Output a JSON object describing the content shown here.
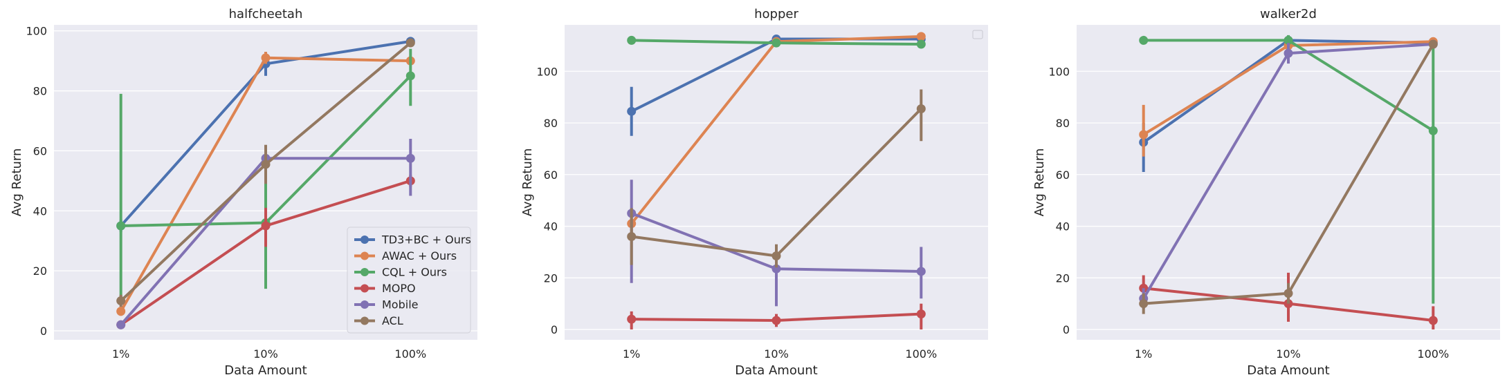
{
  "colors": {
    "panel_bg": "#eaeaf2",
    "grid": "#ffffff",
    "TD3+BC + Ours": "#4c72b0",
    "AWAC + Ours": "#dd8452",
    "CQL + Ours": "#55a868",
    "MOPO": "#c44e52",
    "Mobile": "#8172b3",
    "ACL": "#937860"
  },
  "chart_data": [
    {
      "type": "line",
      "title": "halfcheetah",
      "xlabel": "Data Amount",
      "ylabel": "Avg Return",
      "categories": [
        "1%",
        "10%",
        "100%"
      ],
      "ylim": [
        -3,
        102
      ],
      "yticks": [
        0,
        20,
        40,
        60,
        80,
        100
      ],
      "grid": true,
      "legend": "lower-right",
      "series": [
        {
          "name": "TD3+BC + Ours",
          "values": [
            35,
            89,
            96.5
          ],
          "err": [
            [
              33,
              37
            ],
            [
              85,
              93
            ],
            [
              95.5,
              97.5
            ]
          ]
        },
        {
          "name": "AWAC + Ours",
          "values": [
            6.5,
            91,
            90
          ],
          "err": [
            [
              5,
              8
            ],
            [
              89,
              93
            ],
            [
              89,
              91
            ]
          ]
        },
        {
          "name": "CQL + Ours",
          "values": [
            35,
            36,
            85
          ],
          "err": [
            [
              10,
              79
            ],
            [
              14,
              58
            ],
            [
              75,
              94
            ]
          ]
        },
        {
          "name": "MOPO",
          "values": [
            2,
            35,
            50
          ],
          "err": [
            [
              1,
              3
            ],
            [
              28,
              41
            ],
            [
              48,
              52
            ]
          ]
        },
        {
          "name": "Mobile",
          "values": [
            2,
            57.5,
            57.5
          ],
          "err": [
            [
              1,
              3
            ],
            [
              55,
              60
            ],
            [
              45,
              64
            ]
          ]
        },
        {
          "name": "ACL",
          "values": [
            10,
            55.5,
            96
          ],
          "err": [
            [
              8,
              12
            ],
            [
              49,
              62
            ],
            [
              95,
              97
            ]
          ]
        }
      ]
    },
    {
      "type": "line",
      "title": "hopper",
      "xlabel": "Data Amount",
      "ylabel": "Avg Return",
      "categories": [
        "1%",
        "10%",
        "100%"
      ],
      "ylim": [
        -4,
        118
      ],
      "yticks": [
        0,
        20,
        40,
        60,
        80,
        100
      ],
      "grid": true,
      "legend": "upper-right",
      "series": [
        {
          "name": "TD3+BC + Ours",
          "values": [
            84.5,
            112.5,
            112.5
          ],
          "err": [
            [
              75,
              94
            ],
            [
              111,
              114
            ],
            [
              111,
              114
            ]
          ]
        },
        {
          "name": "AWAC + Ours",
          "values": [
            41,
            111.5,
            113.5
          ],
          "err": [
            [
              37,
              45
            ],
            [
              110,
              113
            ],
            [
              112,
              115
            ]
          ]
        },
        {
          "name": "CQL + Ours",
          "values": [
            112,
            111,
            110.5
          ],
          "err": [
            [
              111,
              113
            ],
            [
              110,
              112
            ],
            [
              109.5,
              111.5
            ]
          ]
        },
        {
          "name": "MOPO",
          "values": [
            4,
            3.5,
            6
          ],
          "err": [
            [
              0,
              7
            ],
            [
              1,
              6
            ],
            [
              0,
              10
            ]
          ]
        },
        {
          "name": "Mobile",
          "values": [
            45,
            23.5,
            22.5
          ],
          "err": [
            [
              18,
              58
            ],
            [
              9,
              31
            ],
            [
              12,
              32
            ]
          ]
        },
        {
          "name": "ACL",
          "values": [
            36,
            28.5,
            85.5
          ],
          "err": [
            [
              25,
              47
            ],
            [
              24,
              33
            ],
            [
              73,
              93
            ]
          ]
        }
      ]
    },
    {
      "type": "line",
      "title": "walker2d",
      "xlabel": "Data Amount",
      "ylabel": "Avg Return",
      "categories": [
        "1%",
        "10%",
        "100%"
      ],
      "ylim": [
        -4,
        118
      ],
      "yticks": [
        0,
        20,
        40,
        60,
        80,
        100
      ],
      "grid": true,
      "legend": "none",
      "series": [
        {
          "name": "TD3+BC + Ours",
          "values": [
            72.5,
            112,
            111
          ],
          "err": [
            [
              61,
              80
            ],
            [
              110,
              114
            ],
            [
              110,
              112
            ]
          ]
        },
        {
          "name": "AWAC + Ours",
          "values": [
            75.5,
            110,
            111.5
          ],
          "err": [
            [
              67,
              87
            ],
            [
              108,
              112
            ],
            [
              110,
              113
            ]
          ]
        },
        {
          "name": "CQL + Ours",
          "values": [
            112,
            112,
            77
          ],
          "err": [
            [
              111,
              113
            ],
            [
              110,
              114
            ],
            [
              10,
              112
            ]
          ]
        },
        {
          "name": "MOPO",
          "values": [
            16,
            10,
            3.5
          ],
          "err": [
            [
              11,
              21
            ],
            [
              3,
              22
            ],
            [
              0,
              9
            ]
          ]
        },
        {
          "name": "Mobile",
          "values": [
            12,
            107,
            110.5
          ],
          "err": [
            [
              8,
              16
            ],
            [
              103,
              111
            ],
            [
              109,
              112
            ]
          ]
        },
        {
          "name": "ACL",
          "values": [
            10,
            14,
            110.5
          ],
          "err": [
            [
              6,
              14
            ],
            [
              10,
              18
            ],
            [
              109,
              112
            ]
          ]
        }
      ]
    }
  ]
}
